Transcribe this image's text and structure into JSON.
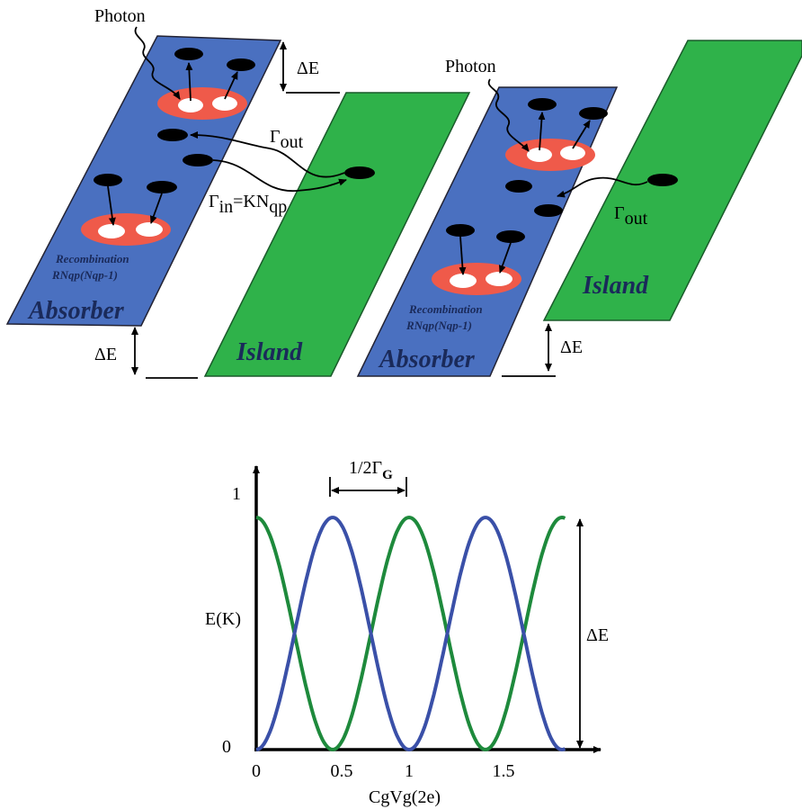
{
  "left_panel": {
    "photon": "Photon",
    "delta_e_top": "ΔE",
    "gamma_out": "Γ",
    "gamma_out_sub": "out",
    "gamma_in": "Γ",
    "gamma_in_sub": "in",
    "gamma_in_eq": "=KN",
    "gamma_in_eq_sub": "qp",
    "recombination": "Recombination",
    "recombination_rate": "RNqp(Nqp-1)",
    "absorber": "Absorber",
    "delta_e_bottom": "ΔE",
    "island": "Island"
  },
  "right_panel": {
    "photon": "Photon",
    "gamma_out": "Γ",
    "gamma_out_sub": "out",
    "recombination": "Recombination",
    "recombination_rate": "RNqp(Nqp-1)",
    "absorber": "Absorber",
    "island": "Island",
    "delta_e": "ΔE"
  },
  "plot": {
    "y_max_label": "1",
    "y_min_label": "0",
    "y_label": "E(K)",
    "x_label": "CgVg(2e)",
    "x_ticks": [
      "0",
      "0.5",
      "1",
      "1.5"
    ],
    "period_label": "1/2Γ",
    "period_sub": "G",
    "delta_e": "ΔE"
  }
}
